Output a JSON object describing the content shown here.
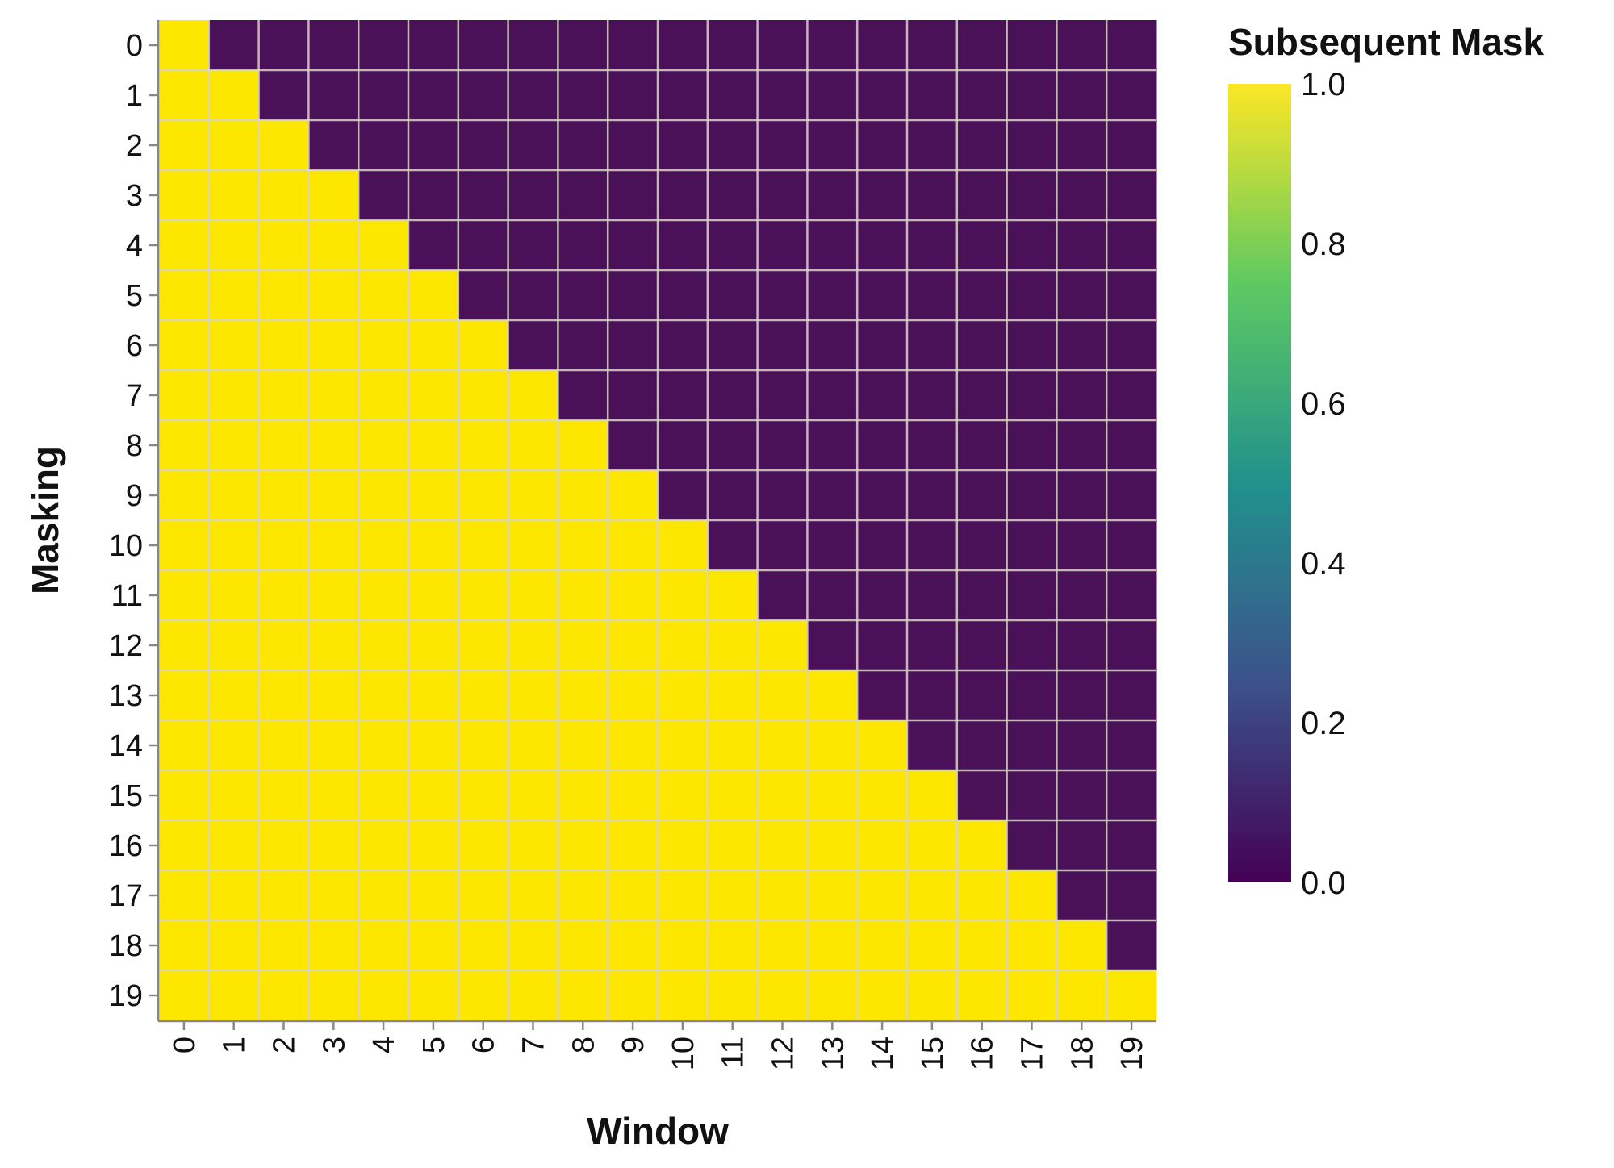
{
  "chart_data": {
    "type": "heatmap",
    "title": "",
    "xlabel": "Window",
    "ylabel": "Masking",
    "x_categories": [
      "0",
      "1",
      "2",
      "3",
      "4",
      "5",
      "6",
      "7",
      "8",
      "9",
      "10",
      "11",
      "12",
      "13",
      "14",
      "15",
      "16",
      "17",
      "18",
      "19"
    ],
    "y_categories": [
      "0",
      "1",
      "2",
      "3",
      "4",
      "5",
      "6",
      "7",
      "8",
      "9",
      "10",
      "11",
      "12",
      "13",
      "14",
      "15",
      "16",
      "17",
      "18",
      "19"
    ],
    "values": [
      [
        1,
        0,
        0,
        0,
        0,
        0,
        0,
        0,
        0,
        0,
        0,
        0,
        0,
        0,
        0,
        0,
        0,
        0,
        0,
        0
      ],
      [
        1,
        1,
        0,
        0,
        0,
        0,
        0,
        0,
        0,
        0,
        0,
        0,
        0,
        0,
        0,
        0,
        0,
        0,
        0,
        0
      ],
      [
        1,
        1,
        1,
        0,
        0,
        0,
        0,
        0,
        0,
        0,
        0,
        0,
        0,
        0,
        0,
        0,
        0,
        0,
        0,
        0
      ],
      [
        1,
        1,
        1,
        1,
        0,
        0,
        0,
        0,
        0,
        0,
        0,
        0,
        0,
        0,
        0,
        0,
        0,
        0,
        0,
        0
      ],
      [
        1,
        1,
        1,
        1,
        1,
        0,
        0,
        0,
        0,
        0,
        0,
        0,
        0,
        0,
        0,
        0,
        0,
        0,
        0,
        0
      ],
      [
        1,
        1,
        1,
        1,
        1,
        1,
        0,
        0,
        0,
        0,
        0,
        0,
        0,
        0,
        0,
        0,
        0,
        0,
        0,
        0
      ],
      [
        1,
        1,
        1,
        1,
        1,
        1,
        1,
        0,
        0,
        0,
        0,
        0,
        0,
        0,
        0,
        0,
        0,
        0,
        0,
        0
      ],
      [
        1,
        1,
        1,
        1,
        1,
        1,
        1,
        1,
        0,
        0,
        0,
        0,
        0,
        0,
        0,
        0,
        0,
        0,
        0,
        0
      ],
      [
        1,
        1,
        1,
        1,
        1,
        1,
        1,
        1,
        1,
        0,
        0,
        0,
        0,
        0,
        0,
        0,
        0,
        0,
        0,
        0
      ],
      [
        1,
        1,
        1,
        1,
        1,
        1,
        1,
        1,
        1,
        1,
        0,
        0,
        0,
        0,
        0,
        0,
        0,
        0,
        0,
        0
      ],
      [
        1,
        1,
        1,
        1,
        1,
        1,
        1,
        1,
        1,
        1,
        1,
        0,
        0,
        0,
        0,
        0,
        0,
        0,
        0,
        0
      ],
      [
        1,
        1,
        1,
        1,
        1,
        1,
        1,
        1,
        1,
        1,
        1,
        1,
        0,
        0,
        0,
        0,
        0,
        0,
        0,
        0
      ],
      [
        1,
        1,
        1,
        1,
        1,
        1,
        1,
        1,
        1,
        1,
        1,
        1,
        1,
        0,
        0,
        0,
        0,
        0,
        0,
        0
      ],
      [
        1,
        1,
        1,
        1,
        1,
        1,
        1,
        1,
        1,
        1,
        1,
        1,
        1,
        1,
        0,
        0,
        0,
        0,
        0,
        0
      ],
      [
        1,
        1,
        1,
        1,
        1,
        1,
        1,
        1,
        1,
        1,
        1,
        1,
        1,
        1,
        1,
        0,
        0,
        0,
        0,
        0
      ],
      [
        1,
        1,
        1,
        1,
        1,
        1,
        1,
        1,
        1,
        1,
        1,
        1,
        1,
        1,
        1,
        1,
        0,
        0,
        0,
        0
      ],
      [
        1,
        1,
        1,
        1,
        1,
        1,
        1,
        1,
        1,
        1,
        1,
        1,
        1,
        1,
        1,
        1,
        1,
        0,
        0,
        0
      ],
      [
        1,
        1,
        1,
        1,
        1,
        1,
        1,
        1,
        1,
        1,
        1,
        1,
        1,
        1,
        1,
        1,
        1,
        1,
        0,
        0
      ],
      [
        1,
        1,
        1,
        1,
        1,
        1,
        1,
        1,
        1,
        1,
        1,
        1,
        1,
        1,
        1,
        1,
        1,
        1,
        1,
        0
      ],
      [
        1,
        1,
        1,
        1,
        1,
        1,
        1,
        1,
        1,
        1,
        1,
        1,
        1,
        1,
        1,
        1,
        1,
        1,
        1,
        1
      ]
    ],
    "color_scale": {
      "name": "viridis",
      "domain": [
        0,
        1
      ],
      "stops": [
        "#440154",
        "#3b528b",
        "#21918c",
        "#5ec962",
        "#fde725"
      ]
    },
    "legend": {
      "title": "Subsequent Mask",
      "ticks": [
        "1.0",
        "0.8",
        "0.6",
        "0.4",
        "0.2",
        "0.0"
      ],
      "placement": "right"
    },
    "grid": true,
    "colors": {
      "low": "#4a1158",
      "high": "#fde700",
      "grid": "#d9d3c8"
    }
  }
}
